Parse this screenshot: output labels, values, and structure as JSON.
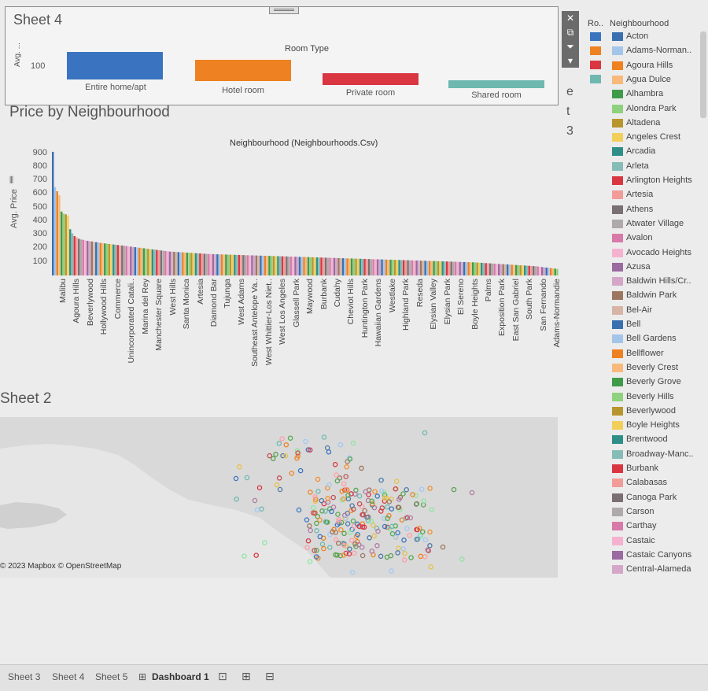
{
  "sheet4": {
    "title": "Sheet 4",
    "header": "Room Type",
    "y_axis": "Avg. ...",
    "y_tick": "100",
    "room_types": [
      {
        "label": "Entire home/apt",
        "color": "#3a74c1"
      },
      {
        "label": "Hotel room",
        "color": "#ee8121"
      },
      {
        "label": "Private room",
        "color": "#d93642"
      },
      {
        "label": "Shared room",
        "color": "#6fb8b0"
      }
    ]
  },
  "toolbar": {
    "close": "✕",
    "popout": "⧉",
    "filter": "⏷",
    "more": "▾"
  },
  "side_letters": [
    "e",
    "t",
    "3"
  ],
  "price_chart": {
    "title": "Price by Neighbourhood",
    "header": "Neighbourhood (Neighbourhoods.Csv)",
    "ylabel": "Avg. Price",
    "yticks": [
      "900",
      "800",
      "700",
      "600",
      "500",
      "400",
      "300",
      "200",
      "100"
    ],
    "x_labels": [
      "Malibu",
      "Agoura Hills",
      "Beverlywood",
      "Hollywood Hills",
      "Commerce",
      "Unincorporated Catali..",
      "Marina del Rey",
      "Manchester Square",
      "West Hills",
      "Santa Monica",
      "Artesia",
      "Diamond Bar",
      "Tujunga",
      "West Adams",
      "Southeast Antelope Va..",
      "West Whittier-Los Niet..",
      "West Los Angeles",
      "Glassell Park",
      "Maywood",
      "Burbank",
      "Cudahy",
      "Cheviot Hills",
      "Huntington Park",
      "Hawaiian Gardens",
      "Westlake",
      "Highland Park",
      "Reseda",
      "Elysian Valley",
      "Elysian Park",
      "El Sereno",
      "Boyle Heights",
      "Palms",
      "Exposition Park",
      "East San Gabriel",
      "South Park",
      "San Fernando",
      "Adams-Normandie"
    ]
  },
  "chart_data": {
    "type": "bar",
    "title": "Price by Neighbourhood",
    "xlabel": "Neighbourhood (Neighbourhoods.Csv)",
    "ylabel": "Avg. Price",
    "ylim": [
      0,
      950
    ],
    "labeled_categories": [
      "Malibu",
      "Agoura Hills",
      "Beverlywood",
      "Hollywood Hills",
      "Commerce",
      "Unincorporated Catali..",
      "Marina del Rey",
      "Manchester Square",
      "West Hills",
      "Santa Monica",
      "Artesia",
      "Diamond Bar",
      "Tujunga",
      "West Adams",
      "Southeast Antelope Va..",
      "West Whittier-Los Niet..",
      "West Los Angeles",
      "Glassell Park",
      "Maywood",
      "Burbank",
      "Cudahy",
      "Cheviot Hills",
      "Huntington Park",
      "Hawaiian Gardens",
      "Westlake",
      "Highland Park",
      "Reseda",
      "Elysian Valley",
      "Elysian Park",
      "El Sereno",
      "Boyle Heights",
      "Palms",
      "Exposition Park",
      "East San Gabriel",
      "South Park",
      "San Fernando",
      "Adams-Normandie"
    ],
    "values": [
      910,
      650,
      620,
      590,
      470,
      455,
      450,
      440,
      340,
      310,
      290,
      280,
      270,
      265,
      262,
      258,
      255,
      252,
      250,
      248,
      245,
      243,
      240,
      238,
      236,
      234,
      232,
      230,
      228,
      226,
      224,
      222,
      220,
      218,
      216,
      214,
      212,
      210,
      208,
      206,
      204,
      202,
      200,
      198,
      196,
      194,
      192,
      190,
      188,
      186,
      184,
      182,
      180,
      178,
      176,
      175,
      174,
      173,
      172,
      171,
      170,
      169,
      168,
      167,
      166,
      165,
      164,
      163,
      162,
      161,
      160,
      159,
      158,
      157,
      157,
      156,
      156,
      155,
      155,
      154,
      154,
      153,
      153,
      152,
      152,
      151,
      151,
      150,
      150,
      149,
      149,
      148,
      148,
      147,
      147,
      146,
      146,
      145,
      145,
      144,
      144,
      143,
      143,
      142,
      142,
      141,
      141,
      140,
      140,
      139,
      139,
      138,
      138,
      137,
      137,
      136,
      136,
      135,
      135,
      134,
      134,
      133,
      133,
      132,
      132,
      131,
      131,
      130,
      130,
      129,
      129,
      128,
      128,
      127,
      127,
      126,
      126,
      125,
      125,
      124,
      124,
      123,
      123,
      122,
      122,
      121,
      121,
      120,
      120,
      119,
      119,
      118,
      118,
      117,
      117,
      116,
      116,
      115,
      115,
      114,
      114,
      113,
      113,
      112,
      112,
      111,
      111,
      110,
      110,
      109,
      109,
      108,
      108,
      107,
      107,
      106,
      106,
      105,
      105,
      104,
      104,
      103,
      103,
      102,
      102,
      101,
      101,
      100,
      100,
      99,
      99,
      98,
      98,
      97,
      97,
      96,
      95,
      94,
      93,
      92,
      91,
      90,
      89,
      88,
      87,
      86,
      85,
      84,
      83,
      82,
      81,
      80,
      79,
      78,
      77,
      76,
      75,
      74,
      73,
      72,
      71,
      70,
      69,
      68,
      66,
      64,
      62,
      60,
      58,
      56,
      54,
      52,
      50,
      48
    ]
  },
  "sheet2": {
    "title": "Sheet 2",
    "attribution": "© 2023 Mapbox © OpenStreetMap"
  },
  "map_points": {
    "colors": [
      "#3a74c1",
      "#ee8121",
      "#d93642",
      "#6fb8b0",
      "#56a84f",
      "#e7c14a",
      "#b07aa1",
      "#ff9da7",
      "#9c755f",
      "#a1c9f4",
      "#8de5a1",
      "#c44e52",
      "#4e79a7",
      "#f28e2b",
      "#59a14f"
    ],
    "count": 260
  },
  "legend_roomtype": {
    "title": "Ro..",
    "colors": [
      "#3a74c1",
      "#ee8121",
      "#d93642",
      "#6fb8b0"
    ]
  },
  "legend_neighbourhood": {
    "title": "Neighbourhood",
    "items": [
      {
        "label": "Acton",
        "color": "#3a6fb0"
      },
      {
        "label": "Adams-Norman..",
        "color": "#a4c5e8"
      },
      {
        "label": "Agoura Hills",
        "color": "#ee8121"
      },
      {
        "label": "Agua Dulce",
        "color": "#f8b97c"
      },
      {
        "label": "Alhambra",
        "color": "#3f9b48"
      },
      {
        "label": "Alondra Park",
        "color": "#8fd17f"
      },
      {
        "label": "Altadena",
        "color": "#b8962e"
      },
      {
        "label": "Angeles Crest",
        "color": "#f2cf5b"
      },
      {
        "label": "Arcadia",
        "color": "#2f8f88"
      },
      {
        "label": "Arleta",
        "color": "#86bcb6"
      },
      {
        "label": "Arlington Heights",
        "color": "#d93642"
      },
      {
        "label": "Artesia",
        "color": "#f19c99"
      },
      {
        "label": "Athens",
        "color": "#7a6f72"
      },
      {
        "label": "Atwater Village",
        "color": "#b0a9a9"
      },
      {
        "label": "Avalon",
        "color": "#d87aa8"
      },
      {
        "label": "Avocado Heights",
        "color": "#f5b2d0"
      },
      {
        "label": "Azusa",
        "color": "#9b6aa0"
      },
      {
        "label": "Baldwin Hills/Cr..",
        "color": "#d4a6c8"
      },
      {
        "label": "Baldwin Park",
        "color": "#9d7660"
      },
      {
        "label": "Bel-Air",
        "color": "#d7b5a6"
      },
      {
        "label": "Bell",
        "color": "#3a6fb0"
      },
      {
        "label": "Bell Gardens",
        "color": "#a4c5e8"
      },
      {
        "label": "Bellflower",
        "color": "#ee8121"
      },
      {
        "label": "Beverly Crest",
        "color": "#f8b97c"
      },
      {
        "label": "Beverly Grove",
        "color": "#3f9b48"
      },
      {
        "label": "Beverly Hills",
        "color": "#8fd17f"
      },
      {
        "label": "Beverlywood",
        "color": "#b8962e"
      },
      {
        "label": "Boyle Heights",
        "color": "#f2cf5b"
      },
      {
        "label": "Brentwood",
        "color": "#2f8f88"
      },
      {
        "label": "Broadway-Manc..",
        "color": "#86bcb6"
      },
      {
        "label": "Burbank",
        "color": "#d93642"
      },
      {
        "label": "Calabasas",
        "color": "#f19c99"
      },
      {
        "label": "Canoga Park",
        "color": "#7a6f72"
      },
      {
        "label": "Carson",
        "color": "#b0a9a9"
      },
      {
        "label": "Carthay",
        "color": "#d87aa8"
      },
      {
        "label": "Castaic",
        "color": "#f5b2d0"
      },
      {
        "label": "Castaic Canyons",
        "color": "#9b6aa0"
      },
      {
        "label": "Central-Alameda",
        "color": "#d4a6c8"
      }
    ]
  },
  "tabs": {
    "sheet3": "Sheet 3",
    "sheet4": "Sheet 4",
    "sheet5": "Sheet 5",
    "dashboard1": "Dashboard 1"
  }
}
